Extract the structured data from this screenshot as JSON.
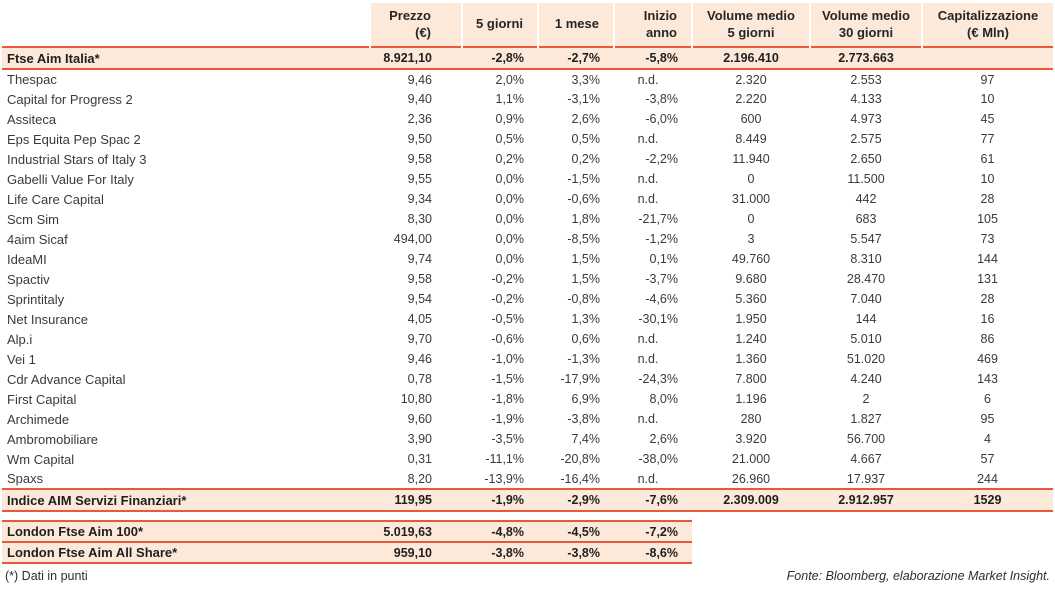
{
  "chart_data": {
    "type": "table",
    "columns": [
      "",
      "Prezzo\n(€)",
      "5 giorni",
      "1 mese",
      "Inizio anno",
      "Volume medio\n5 giorni",
      "Volume medio\n30 giorni",
      "Capitalizzazione\n(€ Mln)"
    ],
    "index_row": {
      "name": "Ftse Aim Italia*",
      "values": [
        "8.921,10",
        "-2,8%",
        "-2,7%",
        "-5,8%",
        "2.196.410",
        "2.773.663",
        ""
      ]
    },
    "stock_rows": [
      {
        "name": "Thespac",
        "values": [
          "9,46",
          "2,0%",
          "3,3%",
          "n.d.",
          "2.320",
          "2.553",
          "97"
        ]
      },
      {
        "name": "Capital for Progress 2",
        "values": [
          "9,40",
          "1,1%",
          "-3,1%",
          "-3,8%",
          "2.220",
          "4.133",
          "10"
        ]
      },
      {
        "name": "Assiteca",
        "values": [
          "2,36",
          "0,9%",
          "2,6%",
          "-6,0%",
          "600",
          "4.973",
          "45"
        ]
      },
      {
        "name": "Eps Equita Pep Spac 2",
        "values": [
          "9,50",
          "0,5%",
          "0,5%",
          "n.d.",
          "8.449",
          "2.575",
          "77"
        ]
      },
      {
        "name": "Industrial Stars of Italy 3",
        "values": [
          "9,58",
          "0,2%",
          "0,2%",
          "-2,2%",
          "11.940",
          "2.650",
          "61"
        ]
      },
      {
        "name": "Gabelli Value For Italy",
        "values": [
          "9,55",
          "0,0%",
          "-1,5%",
          "n.d.",
          "0",
          "11.500",
          "10"
        ]
      },
      {
        "name": "Life Care Capital",
        "values": [
          "9,34",
          "0,0%",
          "-0,6%",
          "n.d.",
          "31.000",
          "442",
          "28"
        ]
      },
      {
        "name": "Scm Sim",
        "values": [
          "8,30",
          "0,0%",
          "1,8%",
          "-21,7%",
          "0",
          "683",
          "105"
        ]
      },
      {
        "name": "4aim Sicaf",
        "values": [
          "494,00",
          "0,0%",
          "-8,5%",
          "-1,2%",
          "3",
          "5.547",
          "73"
        ]
      },
      {
        "name": "IdeaMI",
        "values": [
          "9,74",
          "0,0%",
          "1,5%",
          "0,1%",
          "49.760",
          "8.310",
          "144"
        ]
      },
      {
        "name": "Spactiv",
        "values": [
          "9,58",
          "-0,2%",
          "1,5%",
          "-3,7%",
          "9.680",
          "28.470",
          "131"
        ]
      },
      {
        "name": "Sprintitaly",
        "values": [
          "9,54",
          "-0,2%",
          "-0,8%",
          "-4,6%",
          "5.360",
          "7.040",
          "28"
        ]
      },
      {
        "name": "Net Insurance",
        "values": [
          "4,05",
          "-0,5%",
          "1,3%",
          "-30,1%",
          "1.950",
          "144",
          "16"
        ]
      },
      {
        "name": "Alp.i",
        "values": [
          "9,70",
          "-0,6%",
          "0,6%",
          "n.d.",
          "1.240",
          "5.010",
          "86"
        ]
      },
      {
        "name": "Vei 1",
        "values": [
          "9,46",
          "-1,0%",
          "-1,3%",
          "n.d.",
          "1.360",
          "51.020",
          "469"
        ]
      },
      {
        "name": "Cdr Advance Capital",
        "values": [
          "0,78",
          "-1,5%",
          "-17,9%",
          "-24,3%",
          "7.800",
          "4.240",
          "143"
        ]
      },
      {
        "name": "First Capital",
        "values": [
          "10,80",
          "-1,8%",
          "6,9%",
          "8,0%",
          "1.196",
          "2",
          "6"
        ]
      },
      {
        "name": "Archimede",
        "values": [
          "9,60",
          "-1,9%",
          "-3,8%",
          "n.d.",
          "280",
          "1.827",
          "95"
        ]
      },
      {
        "name": "Ambromobiliare",
        "values": [
          "3,90",
          "-3,5%",
          "7,4%",
          "2,6%",
          "3.920",
          "56.700",
          "4"
        ]
      },
      {
        "name": "Wm Capital",
        "values": [
          "0,31",
          "-11,1%",
          "-20,8%",
          "-38,0%",
          "21.000",
          "4.667",
          "57"
        ]
      },
      {
        "name": "Spaxs",
        "values": [
          "8,20",
          "-13,9%",
          "-16,4%",
          "n.d.",
          "26.960",
          "17.937",
          "244"
        ]
      }
    ],
    "summary_row": {
      "name": "Indice AIM Servizi Finanziari*",
      "values": [
        "119,95",
        "-1,9%",
        "-2,9%",
        "-7,6%",
        "2.309.009",
        "2.912.957",
        "1529"
      ]
    },
    "london_rows": [
      {
        "name": "London Ftse Aim 100*",
        "values": [
          "5.019,63",
          "-4,8%",
          "-4,5%",
          "-7,2%"
        ]
      },
      {
        "name": "London Ftse Aim All Share*",
        "values": [
          "959,10",
          "-3,8%",
          "-3,8%",
          "-8,6%"
        ]
      }
    ]
  },
  "footer": {
    "note": "(*) Dati in punti",
    "source": "Fonte: Bloomberg, elaborazione Market Insight."
  },
  "colors": {
    "header_bg": "#fde9d9",
    "highlight_bg": "#fde9d9",
    "accent_border": "#e8583a",
    "text": "#3a3a3a"
  }
}
